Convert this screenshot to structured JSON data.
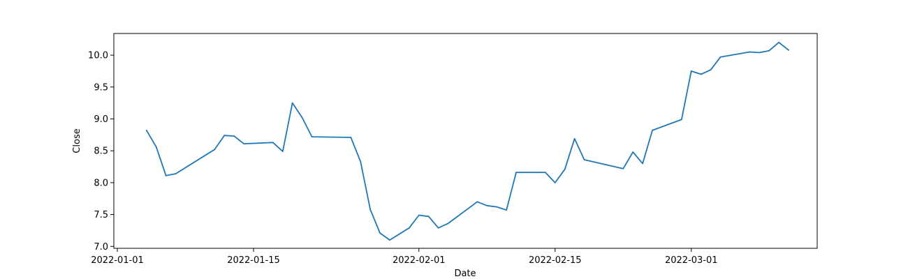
{
  "chart_data": {
    "type": "line",
    "title": "",
    "xlabel": "Date",
    "ylabel": "Close",
    "xlim": [
      "2022-01-01",
      "2022-03-11"
    ],
    "ylim": [
      6.97,
      10.34
    ],
    "grid": false,
    "legend": "none",
    "x_ticks": [
      "2022-01-01",
      "2022-01-15",
      "2022-02-01",
      "2022-02-15",
      "2022-03-01"
    ],
    "y_ticks": [
      7.0,
      7.5,
      8.0,
      8.5,
      9.0,
      9.5,
      10.0
    ],
    "y_tick_labels": [
      "7.0",
      "7.5",
      "8.0",
      "8.5",
      "9.0",
      "9.5",
      "10.0"
    ],
    "series": [
      {
        "color": "#1f77b4",
        "x": [
          "2022-01-04",
          "2022-01-05",
          "2022-01-06",
          "2022-01-07",
          "2022-01-11",
          "2022-01-12",
          "2022-01-13",
          "2022-01-14",
          "2022-01-17",
          "2022-01-18",
          "2022-01-19",
          "2022-01-20",
          "2022-01-21",
          "2022-01-25",
          "2022-01-26",
          "2022-01-27",
          "2022-01-28",
          "2022-01-29",
          "2022-01-31",
          "2022-02-01",
          "2022-02-02",
          "2022-02-03",
          "2022-02-04",
          "2022-02-07",
          "2022-02-08",
          "2022-02-09",
          "2022-02-10",
          "2022-02-11",
          "2022-02-14",
          "2022-02-15",
          "2022-02-16",
          "2022-02-17",
          "2022-02-18",
          "2022-02-22",
          "2022-02-23",
          "2022-02-24",
          "2022-02-25",
          "2022-02-28",
          "2022-03-01",
          "2022-03-02",
          "2022-03-03",
          "2022-03-04",
          "2022-03-07",
          "2022-03-08",
          "2022-03-09",
          "2022-03-10",
          "2022-03-11"
        ],
        "y": [
          8.82,
          8.56,
          8.11,
          8.14,
          8.52,
          8.74,
          8.73,
          8.61,
          8.63,
          8.49,
          9.25,
          9.02,
          8.72,
          8.71,
          8.33,
          7.58,
          7.21,
          7.1,
          7.29,
          7.49,
          7.47,
          7.29,
          7.36,
          7.7,
          7.64,
          7.62,
          7.57,
          8.16,
          8.16,
          8.0,
          8.21,
          8.69,
          8.36,
          8.22,
          8.48,
          8.3,
          8.82,
          8.99,
          9.75,
          9.7,
          9.77,
          9.97,
          10.05,
          10.04,
          10.07,
          10.2,
          10.08
        ]
      }
    ]
  }
}
